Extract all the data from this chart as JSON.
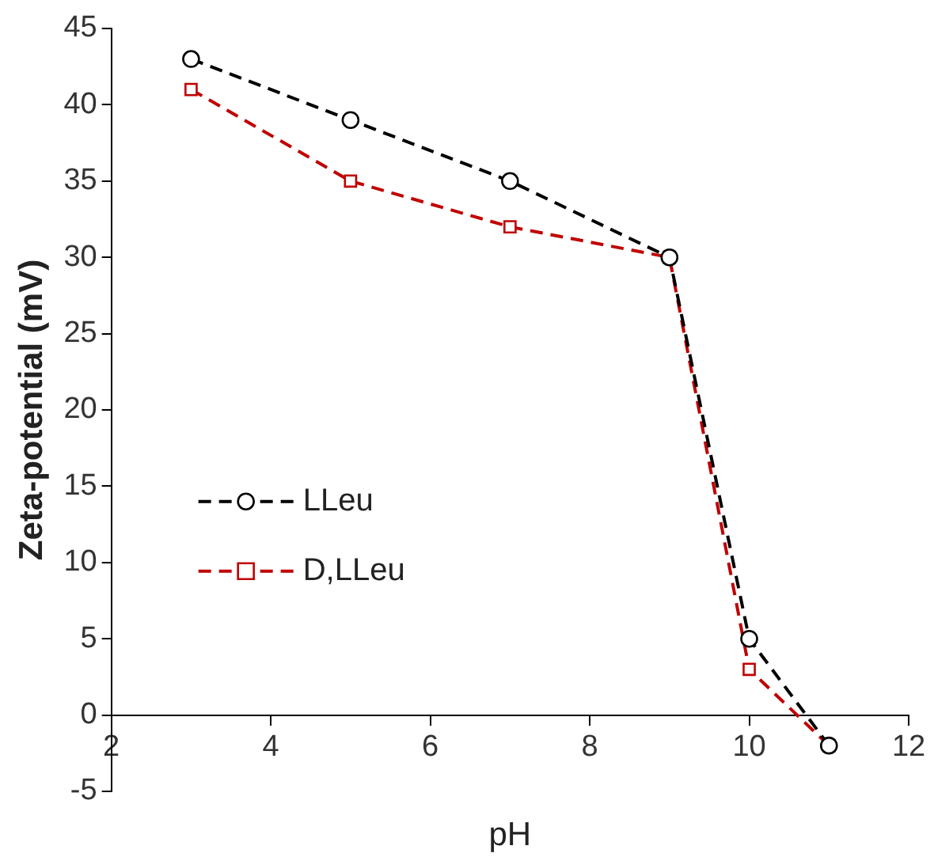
{
  "chart_data": {
    "type": "line",
    "xlabel": "pH",
    "ylabel": "Zeta-potential (mV)",
    "xlim": [
      2,
      12
    ],
    "xticks": [
      2,
      4,
      6,
      8,
      10,
      12
    ],
    "ylim": [
      -5,
      45
    ],
    "yticks": [
      -5,
      0,
      5,
      10,
      15,
      20,
      25,
      30,
      35,
      40,
      45
    ],
    "grid": false,
    "legend": "left",
    "line_style": "dashed",
    "series": [
      {
        "name": "LLeu",
        "color": "#000000",
        "marker": "circle",
        "x": [
          3,
          5,
          7,
          9,
          10,
          11
        ],
        "values": [
          43,
          39,
          35,
          30,
          5,
          -2
        ]
      },
      {
        "name": "D,LLeu",
        "color": "#c00000",
        "marker": "square",
        "x": [
          3,
          5,
          7,
          9,
          10,
          11
        ],
        "values": [
          41,
          35,
          32,
          30,
          3,
          -2
        ]
      }
    ]
  }
}
